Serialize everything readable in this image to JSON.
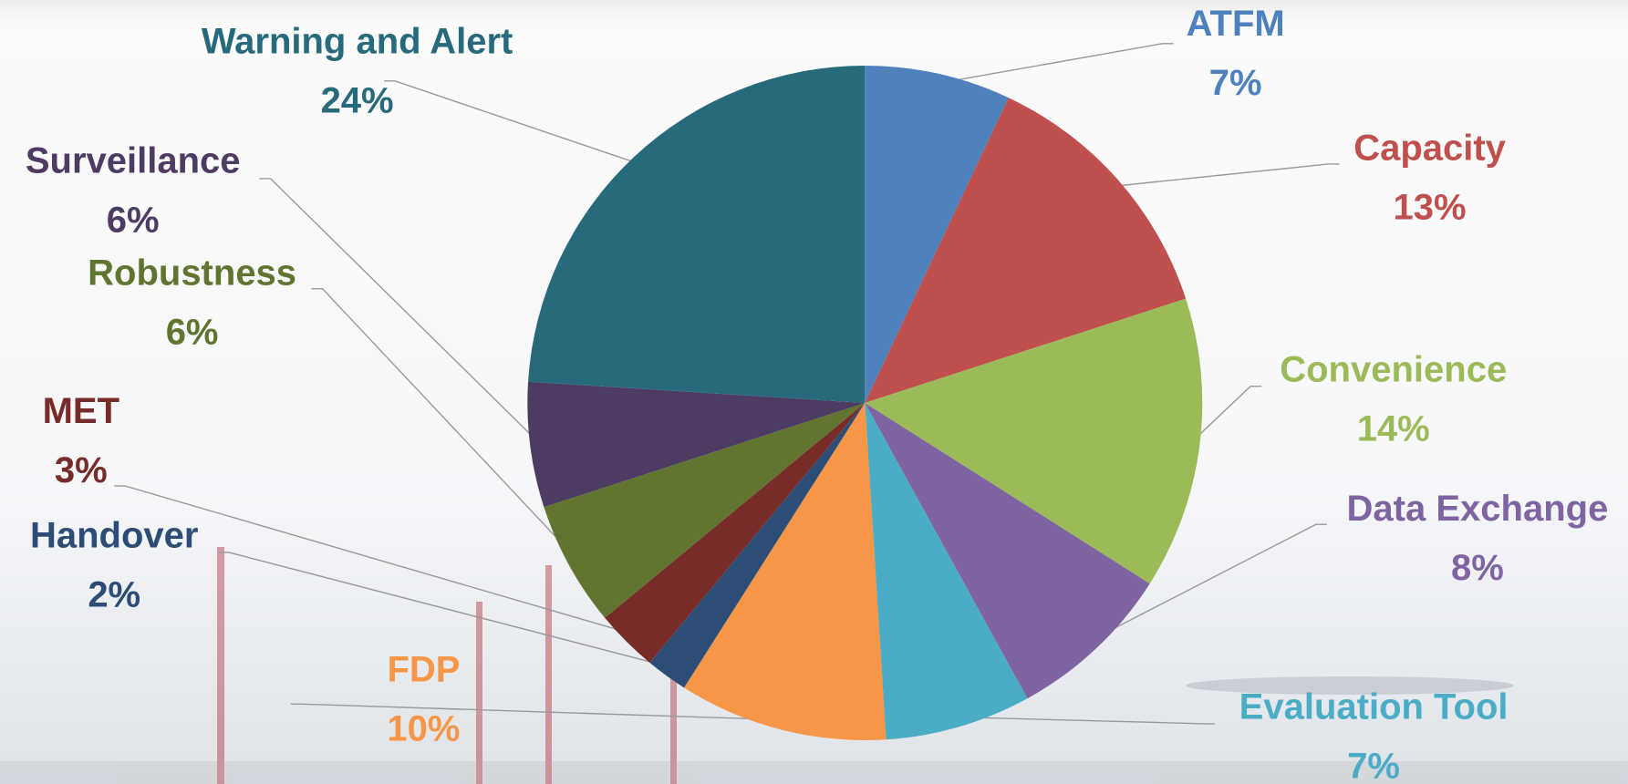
{
  "chart_data": {
    "type": "pie",
    "categories": [
      "ATFM",
      "Capacity",
      "Convenience",
      "Data Exchange",
      "Evaluation Tool",
      "FDP",
      "Handover",
      "MET",
      "Robustness",
      "Surveillance",
      "Warning and Alert"
    ],
    "values": [
      7,
      13,
      14,
      8,
      7,
      10,
      2,
      3,
      6,
      6,
      24
    ],
    "value_labels": [
      "7%",
      "13%",
      "14%",
      "8%",
      "7%",
      "10%",
      "2%",
      "3%",
      "6%",
      "6%",
      "24%"
    ],
    "colors": [
      "#4f81bd",
      "#c0504d",
      "#9bbb59",
      "#8064a2",
      "#4bacc6",
      "#f79646",
      "#2c4d75",
      "#772c2a",
      "#5f7530",
      "#4d3b62",
      "#276a7c"
    ]
  }
}
